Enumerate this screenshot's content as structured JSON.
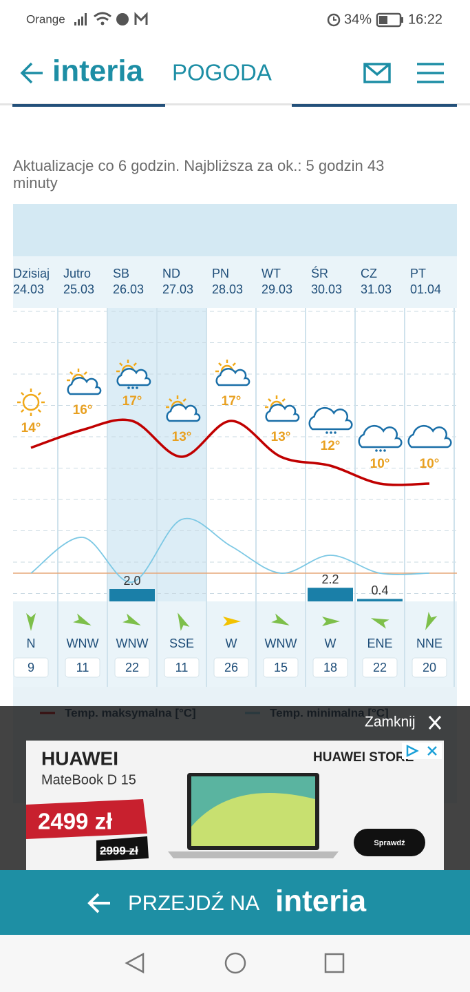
{
  "status_bar": {
    "carrier": "Orange",
    "battery": "34%",
    "time": "16:22"
  },
  "header": {
    "logo": "interia",
    "section": "POGODA"
  },
  "update_notice": {
    "line1": "Aktualizacje co 6 godzin. Najbliższa za ok.: 5 godzin 43",
    "line2": "minuty"
  },
  "chart_data": {
    "type": "line",
    "categories": [
      "Dzisiaj",
      "Jutro",
      "SB",
      "ND",
      "PN",
      "WT",
      "ŚR",
      "CZ",
      "PT"
    ],
    "dates": [
      "24.03",
      "25.03",
      "26.03",
      "27.03",
      "28.03",
      "29.03",
      "30.03",
      "31.03",
      "01.04"
    ],
    "series": [
      {
        "name": "Temp. maksymalna [°C]",
        "color": "#c00000",
        "values": [
          14,
          16,
          17,
          13,
          17,
          13,
          12,
          10,
          10
        ],
        "value_labels": [
          "14°",
          "16°",
          "17°",
          "13°",
          "17°",
          "13°",
          "12°",
          "10°",
          "10°"
        ]
      },
      {
        "name": "Temp. minimalna [°C]",
        "color": "#7cc8e4",
        "values": [
          0,
          4,
          -1,
          6,
          3,
          0,
          2,
          0,
          0
        ]
      }
    ],
    "precipitation": {
      "color": "#1a7fa8",
      "values": [
        null,
        null,
        2.0,
        null,
        null,
        null,
        2.2,
        0.4,
        null
      ],
      "value_labels": [
        null,
        null,
        "2.0",
        null,
        null,
        null,
        "2.2",
        "0.4",
        null
      ]
    }
  },
  "wind": {
    "directions": [
      "N",
      "WNW",
      "WNW",
      "SSE",
      "W",
      "WNW",
      "W",
      "ENE",
      "NNE"
    ],
    "speeds": [
      9,
      11,
      22,
      11,
      26,
      15,
      18,
      22,
      20
    ]
  },
  "ad": {
    "close": "Zamknij",
    "brand": "HUAWEI",
    "model": "MateBook D 15",
    "price": "2499 zł",
    "old_price": "2999 zł",
    "store": "HUAWEI STORE",
    "button": "Sprawdź"
  },
  "banner": {
    "text": "PRZEJDŹ NA",
    "logo": "interia"
  }
}
